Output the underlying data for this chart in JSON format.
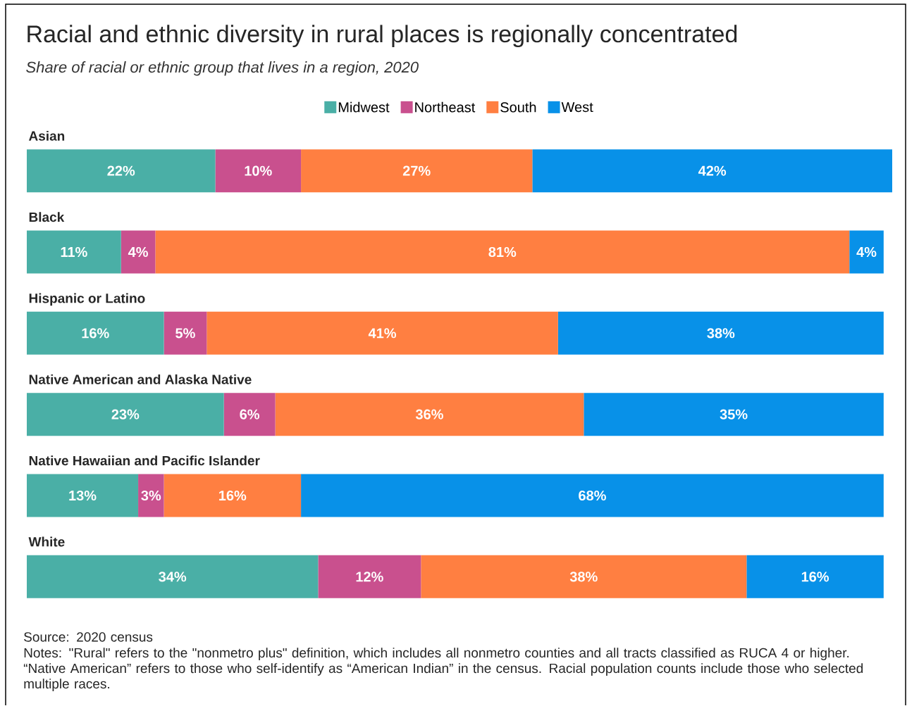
{
  "chart_data": {
    "type": "bar",
    "orientation": "horizontal",
    "stacked": true,
    "title": "Racial and ethnic diversity in rural places is regionally concentrated",
    "subtitle": "Share of racial or ethnic group that lives in a region, 2020",
    "categories": [
      "Asian",
      "Black",
      "Hispanic or Latino",
      "Native American and Alaska Native",
      "Native Hawaiian and Pacific Islander",
      "White"
    ],
    "series": [
      {
        "name": "Midwest",
        "color": "#4aafa6",
        "values": [
          22,
          11,
          16,
          23,
          13,
          34
        ],
        "value_labels": [
          "22%",
          "11%",
          "16%",
          "23%",
          "13%",
          "34%"
        ]
      },
      {
        "name": "Northeast",
        "color": "#c9508e",
        "values": [
          10,
          4,
          5,
          6,
          3,
          12
        ],
        "value_labels": [
          "10%",
          "4%",
          "5%",
          "6%",
          "3%",
          "12%"
        ]
      },
      {
        "name": "South",
        "color": "#ff7f41",
        "values": [
          27,
          81,
          41,
          36,
          16,
          38
        ],
        "value_labels": [
          "27%",
          "81%",
          "41%",
          "36%",
          "16%",
          "38%"
        ]
      },
      {
        "name": "West",
        "color": "#0891e8",
        "values": [
          42,
          4,
          38,
          35,
          68,
          16
        ],
        "value_labels": [
          "42%",
          "4%",
          "38%",
          "35%",
          "68%",
          "16%"
        ]
      }
    ],
    "legend": "top",
    "annotations": [
      "Source: 2020 census",
      "Notes: \"Rural\" refers to the \"nonmetro plus\" definition, which includes all nonmetro counties and all tracts classified as RUCA 4 or higher. “Native American” refers to those who self-identify as “American Indian” in the census. Racial population counts include those who selected multiple races."
    ]
  }
}
